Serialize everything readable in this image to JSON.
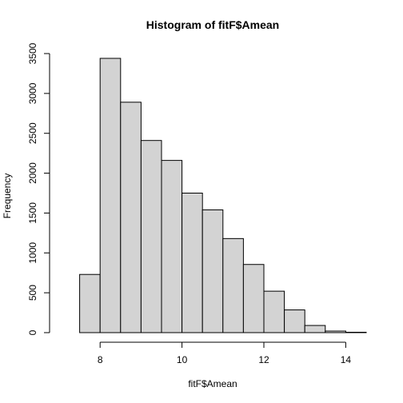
{
  "chart_data": {
    "type": "bar",
    "title": "Histogram of fitF$Amean",
    "xlabel": "fitF$Amean",
    "ylabel": "Frequency",
    "bin_edges": [
      7.5,
      8.0,
      8.5,
      9.0,
      9.5,
      10.0,
      10.5,
      11.0,
      11.5,
      12.0,
      12.5,
      13.0,
      13.5,
      14.0,
      14.5
    ],
    "values": [
      730,
      3440,
      2890,
      2410,
      2160,
      1750,
      1540,
      1180,
      855,
      520,
      285,
      90,
      20,
      5
    ],
    "xlim": [
      7.0,
      14.5
    ],
    "ylim": [
      0,
      3500
    ],
    "x_ticks": [
      8,
      10,
      12,
      14
    ],
    "x_tick_labels": [
      "8",
      "10",
      "12",
      "14"
    ],
    "y_ticks": [
      0,
      500,
      1000,
      1500,
      2000,
      2500,
      3000,
      3500
    ],
    "y_tick_labels": [
      "0",
      "500",
      "1000",
      "1500",
      "2000",
      "2500",
      "3000",
      "3500"
    ],
    "grid": false,
    "bar_color": "#d3d3d3",
    "edge_color": "#000000"
  }
}
